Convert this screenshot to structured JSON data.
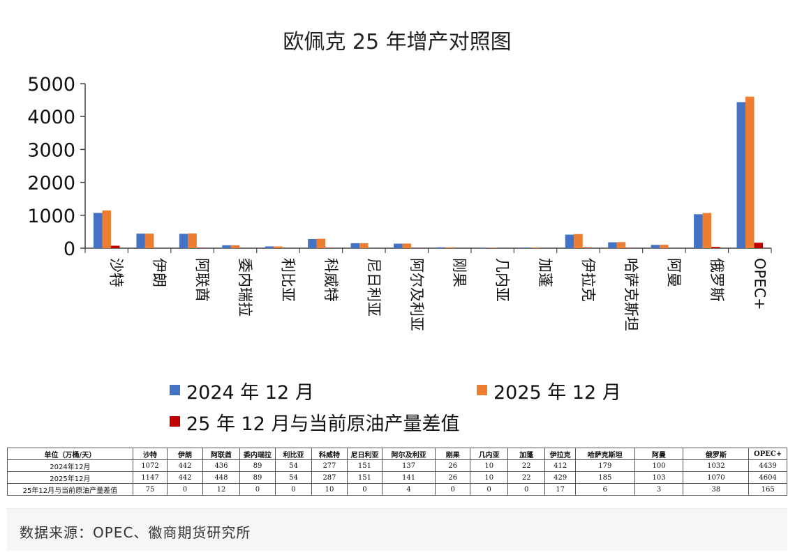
{
  "chart_data": {
    "type": "bar",
    "title": "欧佩克 25 年增产对照图",
    "categories": [
      "沙特",
      "伊朗",
      "阿联酋",
      "委内瑞拉",
      "利比亚",
      "科威特",
      "尼日利亚",
      "阿尔及利亚",
      "刚果",
      "几内亚",
      "加蓬",
      "伊拉克",
      "哈萨克斯坦",
      "阿曼",
      "俄罗斯",
      "OPEC+"
    ],
    "series": [
      {
        "name": "2024 年 12 月",
        "color": "#4472C4",
        "values": [
          1072,
          442,
          436,
          89,
          54,
          277,
          151,
          137,
          26,
          10,
          22,
          412,
          179,
          100,
          1032,
          4439
        ]
      },
      {
        "name": "2025 年 12 月",
        "color": "#ED7D31",
        "values": [
          1147,
          442,
          448,
          89,
          54,
          287,
          151,
          141,
          26,
          10,
          22,
          429,
          185,
          103,
          1070,
          4604
        ]
      },
      {
        "name": "25 年 12 月与当前原油产量差值",
        "color": "#C00000",
        "values": [
          75,
          0,
          12,
          0,
          0,
          10,
          0,
          4,
          0,
          0,
          0,
          17,
          6,
          3,
          38,
          165
        ]
      }
    ],
    "ylim": [
      0,
      5000
    ],
    "yticks": [
      0,
      1000,
      2000,
      3000,
      4000,
      5000
    ],
    "grid": false,
    "legend_position": "bottom"
  },
  "table": {
    "header": [
      "单位（万桶/天）",
      "沙特",
      "伊朗",
      "阿联酋",
      "委内瑞拉",
      "利比亚",
      "科威特",
      "尼日利亚",
      "阿尔及利亚",
      "刚果",
      "几内亚",
      "加蓬",
      "伊拉克",
      "哈萨克斯坦",
      "阿曼",
      "俄罗斯",
      "OPEC+"
    ],
    "rows": [
      {
        "label": "2024年12月",
        "values": [
          "1072",
          "442",
          "436",
          "89",
          "54",
          "277",
          "151",
          "137",
          "26",
          "10",
          "22",
          "412",
          "179",
          "100",
          "1032",
          "4439"
        ]
      },
      {
        "label": "2025年12月",
        "values": [
          "1147",
          "442",
          "448",
          "89",
          "54",
          "287",
          "151",
          "141",
          "26",
          "10",
          "22",
          "429",
          "185",
          "103",
          "1070",
          "4604"
        ]
      },
      {
        "label": "25年12月与当前原油产量差值",
        "values": [
          "75",
          "0",
          "12",
          "0",
          "0",
          "10",
          "0",
          "4",
          "0",
          "0",
          "0",
          "17",
          "6",
          "3",
          "38",
          "165"
        ]
      }
    ]
  },
  "source": "数据来源：OPEC、徽商期货研究所"
}
